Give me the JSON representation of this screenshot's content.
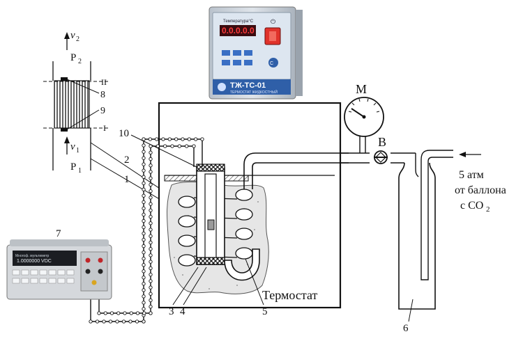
{
  "inset": {
    "v2": "v",
    "v2_sub": "2",
    "p2": "P",
    "p2_sub": "2",
    "v1": "v",
    "v1_sub": "1",
    "p1": "P",
    "p1_sub": "1",
    "roman_ii": "II",
    "roman_i": "I",
    "n8": "8",
    "n9": "9"
  },
  "labels": {
    "n1": "1",
    "n2": "2",
    "n3": "3",
    "n4": "4",
    "n5": "5",
    "n6": "6",
    "n7": "7",
    "n10": "10",
    "m": "M",
    "b": "B",
    "thermostat": "Термостат"
  },
  "gas": {
    "line1": "5 атм",
    "line2": "от баллона",
    "line3_prefix": "с CO",
    "line3_sub": "2"
  },
  "device": {
    "display": "0.0.0.0.0",
    "top_label": "Температура°C",
    "model": "ТЖ-ТС-01",
    "subtitle": "ТЕРМОСТАТ ЖИДКОСТНЫЙ"
  },
  "multimeter": {
    "display_line1": "1.0000000 VDC",
    "display_line2": "000.000 VDC",
    "brand": "Многоф. мультиметр"
  },
  "colors": {
    "line": "#111111",
    "hatch": "#333333",
    "water": "#e8e8e8",
    "device_body": "#cfd6de",
    "device_panel": "#2f5fa8",
    "display_red": "#d6283a",
    "power_red": "#e0322a"
  }
}
